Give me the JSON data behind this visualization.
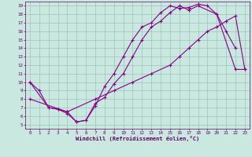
{
  "xlabel": "Windchill (Refroidissement éolien,°C)",
  "bg_color": "#c8e8e0",
  "grid_color": "#a0c0b8",
  "line_color": "#880088",
  "xlim": [
    -0.5,
    23.5
  ],
  "ylim": [
    4.5,
    19.5
  ],
  "xticks": [
    0,
    1,
    2,
    3,
    4,
    5,
    6,
    7,
    8,
    9,
    10,
    11,
    12,
    13,
    14,
    15,
    16,
    17,
    18,
    19,
    20,
    21,
    22,
    23
  ],
  "yticks": [
    5,
    6,
    7,
    8,
    9,
    10,
    11,
    12,
    13,
    14,
    15,
    16,
    17,
    18,
    19
  ],
  "line1_x": [
    0,
    1,
    2,
    3,
    4,
    5,
    6,
    7,
    8,
    9,
    10,
    11,
    12,
    13,
    14,
    15,
    16,
    17,
    18,
    19,
    20,
    21,
    22
  ],
  "line1_y": [
    10,
    9,
    7,
    6.8,
    6.5,
    5.3,
    5.5,
    7.2,
    9.5,
    11,
    13,
    15,
    16.5,
    17,
    18.2,
    19.0,
    18.7,
    18.8,
    19.2,
    19.0,
    18.0,
    16.0,
    14.0
  ],
  "line2_x": [
    0,
    2,
    3,
    4,
    5,
    6,
    7,
    8,
    9,
    10,
    11,
    12,
    13,
    14,
    15,
    16,
    17,
    18,
    20,
    22,
    23
  ],
  "line2_y": [
    10,
    7.0,
    6.8,
    6.3,
    5.3,
    5.5,
    7.5,
    8.2,
    9.8,
    11,
    13,
    15,
    16.5,
    17.2,
    18.2,
    19.0,
    18.5,
    19.0,
    18.0,
    11.5,
    11.5
  ],
  "line3_x": [
    0,
    4,
    7,
    9,
    11,
    13,
    15,
    16,
    17,
    18,
    19,
    20,
    21,
    22,
    23
  ],
  "line3_y": [
    8.0,
    6.5,
    8.0,
    9.0,
    10.0,
    11.0,
    12.0,
    13.0,
    14.0,
    15.0,
    16.0,
    16.5,
    17.2,
    17.8,
    11.5
  ]
}
